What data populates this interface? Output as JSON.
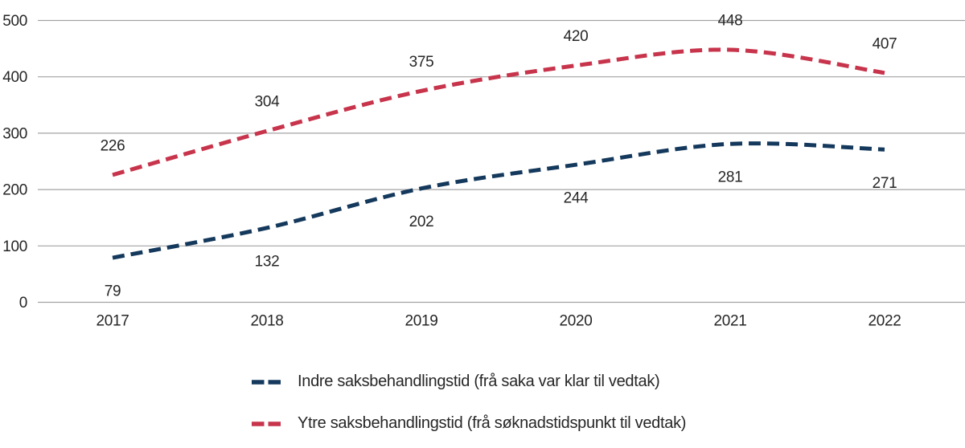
{
  "chart_data": {
    "type": "line",
    "title": "",
    "xlabel": "",
    "ylabel": "",
    "categories": [
      "2017",
      "2018",
      "2019",
      "2020",
      "2021",
      "2022"
    ],
    "series": [
      {
        "id": "indre",
        "name": "Indre saksbehandlingstid (frå saka var klar til vedtak)",
        "values": [
          79,
          132,
          202,
          244,
          281,
          271
        ],
        "color": "#14395C",
        "label_position": "below"
      },
      {
        "id": "ytre",
        "name": "Ytre saksbehandlingstid (frå søknadstidspunkt til vedtak)",
        "values": [
          226,
          304,
          375,
          420,
          448,
          407
        ],
        "color": "#C7344B",
        "label_position": "above"
      }
    ],
    "ylim": [
      0,
      500
    ],
    "yticks": [
      0,
      100,
      200,
      300,
      400,
      500
    ],
    "grid": "horizontal-only",
    "line_style": "dashed",
    "line_smoothing": true,
    "legend_position": "bottom-left"
  },
  "colors": {
    "grid": "#A3A3A3",
    "text": "#262626",
    "background": "#FFFFFF"
  }
}
